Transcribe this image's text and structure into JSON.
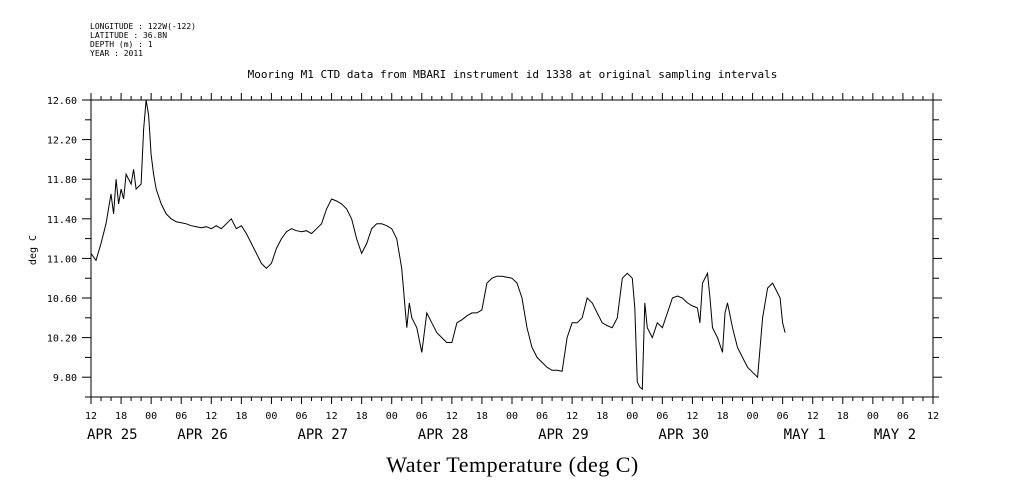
{
  "meta": {
    "longitude": "LONGITUDE : 122W(-122)",
    "latitude": "LATITUDE : 36.8N",
    "depth": "DEPTH (m) : 1",
    "year": "YEAR : 2011"
  },
  "title": "Mooring M1 CTD data from MBARI instrument id 1338 at original sampling intervals",
  "footer_title": "Water Temperature (deg C)",
  "chart_data": {
    "type": "line",
    "ylabel": "deg C",
    "ylim": [
      9.6,
      12.6
    ],
    "yticks": [
      "9.80",
      "10.20",
      "10.60",
      "11.00",
      "11.40",
      "11.80",
      "12.20",
      "12.60"
    ],
    "x_unit": "hours since APR 25 12:00",
    "xlim": [
      0,
      168
    ],
    "x_hour_labels": [
      "12",
      "18",
      "00",
      "06",
      "12",
      "18",
      "00",
      "06",
      "12",
      "18",
      "00",
      "06",
      "12",
      "18",
      "00",
      "06",
      "12",
      "18",
      "00",
      "06",
      "12",
      "18",
      "00",
      "06",
      "12",
      "18",
      "00",
      "06",
      "12"
    ],
    "x_day_labels": [
      {
        "label": "APR 25",
        "x": 0
      },
      {
        "label": "APR 26",
        "x": 18
      },
      {
        "label": "APR 27",
        "x": 42
      },
      {
        "label": "APR 28",
        "x": 66
      },
      {
        "label": "APR 29",
        "x": 90
      },
      {
        "label": "APR 30",
        "x": 114
      },
      {
        "label": "MAY  1",
        "x": 139
      },
      {
        "label": "MAY  2",
        "x": 157
      }
    ],
    "grid": false,
    "series": [
      {
        "values": [
          [
            0,
            11.05
          ],
          [
            1,
            10.98
          ],
          [
            2,
            11.15
          ],
          [
            3,
            11.35
          ],
          [
            4,
            11.65
          ],
          [
            4.5,
            11.45
          ],
          [
            5,
            11.8
          ],
          [
            5.5,
            11.55
          ],
          [
            6,
            11.7
          ],
          [
            6.5,
            11.6
          ],
          [
            7,
            11.85
          ],
          [
            8,
            11.75
          ],
          [
            8.5,
            11.9
          ],
          [
            9,
            11.7
          ],
          [
            10,
            11.75
          ],
          [
            10.5,
            12.3
          ],
          [
            11,
            12.6
          ],
          [
            11.5,
            12.45
          ],
          [
            12,
            12.05
          ],
          [
            12.5,
            11.85
          ],
          [
            13,
            11.7
          ],
          [
            14,
            11.55
          ],
          [
            15,
            11.45
          ],
          [
            16,
            11.4
          ],
          [
            17,
            11.37
          ],
          [
            18,
            11.36
          ],
          [
            19,
            11.35
          ],
          [
            20,
            11.33
          ],
          [
            21,
            11.32
          ],
          [
            22,
            11.31
          ],
          [
            23,
            11.32
          ],
          [
            24,
            11.3
          ],
          [
            25,
            11.33
          ],
          [
            26,
            11.3
          ],
          [
            27,
            11.35
          ],
          [
            28,
            11.4
          ],
          [
            28.5,
            11.35
          ],
          [
            29,
            11.3
          ],
          [
            30,
            11.33
          ],
          [
            31,
            11.25
          ],
          [
            32,
            11.15
          ],
          [
            33,
            11.05
          ],
          [
            34,
            10.95
          ],
          [
            35,
            10.9
          ],
          [
            36,
            10.95
          ],
          [
            37,
            11.1
          ],
          [
            38,
            11.2
          ],
          [
            39,
            11.27
          ],
          [
            40,
            11.3
          ],
          [
            41,
            11.28
          ],
          [
            42,
            11.27
          ],
          [
            43,
            11.28
          ],
          [
            44,
            11.25
          ],
          [
            45,
            11.3
          ],
          [
            46,
            11.35
          ],
          [
            47,
            11.5
          ],
          [
            48,
            11.6
          ],
          [
            49,
            11.58
          ],
          [
            50,
            11.55
          ],
          [
            51,
            11.5
          ],
          [
            52,
            11.4
          ],
          [
            53,
            11.2
          ],
          [
            54,
            11.05
          ],
          [
            55,
            11.15
          ],
          [
            56,
            11.3
          ],
          [
            57,
            11.35
          ],
          [
            58,
            11.35
          ],
          [
            59,
            11.33
          ],
          [
            60,
            11.3
          ],
          [
            61,
            11.2
          ],
          [
            62,
            10.9
          ],
          [
            63,
            10.3
          ],
          [
            63.5,
            10.55
          ],
          [
            64,
            10.4
          ],
          [
            65,
            10.3
          ],
          [
            66,
            10.05
          ],
          [
            67,
            10.45
          ],
          [
            68,
            10.35
          ],
          [
            69,
            10.25
          ],
          [
            70,
            10.2
          ],
          [
            71,
            10.15
          ],
          [
            72,
            10.15
          ],
          [
            73,
            10.35
          ],
          [
            74,
            10.38
          ],
          [
            75,
            10.42
          ],
          [
            76,
            10.45
          ],
          [
            77,
            10.45
          ],
          [
            78,
            10.48
          ],
          [
            79,
            10.75
          ],
          [
            80,
            10.8
          ],
          [
            81,
            10.82
          ],
          [
            82,
            10.82
          ],
          [
            83,
            10.81
          ],
          [
            84,
            10.8
          ],
          [
            85,
            10.75
          ],
          [
            86,
            10.6
          ],
          [
            87,
            10.3
          ],
          [
            88,
            10.1
          ],
          [
            89,
            10.0
          ],
          [
            90,
            9.95
          ],
          [
            91,
            9.9
          ],
          [
            92,
            9.87
          ],
          [
            93,
            9.87
          ],
          [
            94,
            9.86
          ],
          [
            95,
            10.2
          ],
          [
            96,
            10.35
          ],
          [
            97,
            10.35
          ],
          [
            98,
            10.4
          ],
          [
            99,
            10.6
          ],
          [
            100,
            10.55
          ],
          [
            101,
            10.45
          ],
          [
            102,
            10.35
          ],
          [
            103,
            10.32
          ],
          [
            104,
            10.3
          ],
          [
            105,
            10.4
          ],
          [
            106,
            10.8
          ],
          [
            107,
            10.85
          ],
          [
            108,
            10.8
          ],
          [
            108.5,
            10.5
          ],
          [
            109,
            9.75
          ],
          [
            109.5,
            9.7
          ],
          [
            110,
            9.68
          ],
          [
            110.5,
            10.55
          ],
          [
            111,
            10.3
          ],
          [
            112,
            10.2
          ],
          [
            113,
            10.35
          ],
          [
            114,
            10.3
          ],
          [
            115,
            10.45
          ],
          [
            116,
            10.6
          ],
          [
            117,
            10.62
          ],
          [
            118,
            10.6
          ],
          [
            119,
            10.55
          ],
          [
            120,
            10.52
          ],
          [
            121,
            10.5
          ],
          [
            121.5,
            10.35
          ],
          [
            122,
            10.75
          ],
          [
            123,
            10.85
          ],
          [
            123.5,
            10.6
          ],
          [
            124,
            10.3
          ],
          [
            125,
            10.2
          ],
          [
            126,
            10.05
          ],
          [
            126.5,
            10.45
          ],
          [
            127,
            10.55
          ],
          [
            128,
            10.3
          ],
          [
            129,
            10.1
          ],
          [
            130,
            10.0
          ],
          [
            131,
            9.9
          ],
          [
            132,
            9.85
          ],
          [
            133,
            9.8
          ],
          [
            134,
            10.4
          ],
          [
            135,
            10.7
          ],
          [
            136,
            10.75
          ],
          [
            137,
            10.65
          ],
          [
            137.5,
            10.6
          ],
          [
            138,
            10.35
          ],
          [
            138.5,
            10.25
          ]
        ]
      }
    ]
  }
}
